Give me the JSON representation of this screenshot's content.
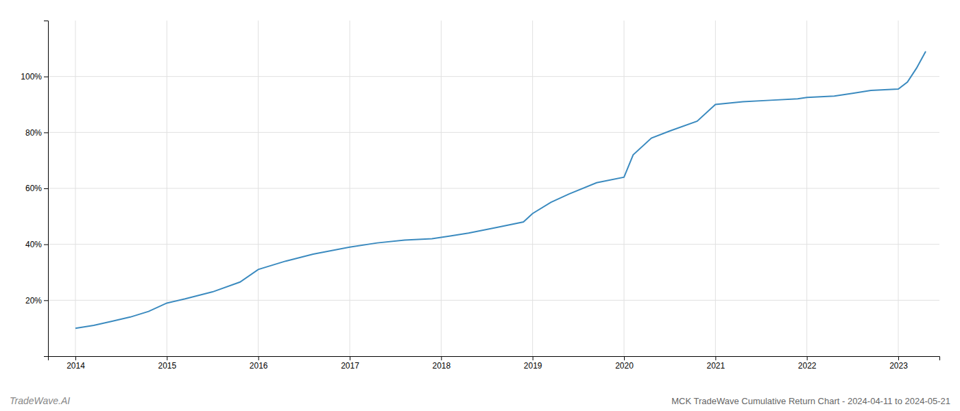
{
  "chart_data": {
    "type": "line",
    "title": "MCK TradeWave Cumulative Return Chart - 2024-04-11 to 2024-05-21",
    "annotations": [
      "TradeWave.AI"
    ],
    "x": [
      2014.0,
      2014.2,
      2014.4,
      2014.6,
      2014.8,
      2015.0,
      2015.2,
      2015.5,
      2015.8,
      2016.0,
      2016.3,
      2016.6,
      2017.0,
      2017.3,
      2017.6,
      2017.9,
      2018.0,
      2018.1,
      2018.3,
      2018.6,
      2018.9,
      2019.0,
      2019.2,
      2019.4,
      2019.7,
      2020.0,
      2020.1,
      2020.3,
      2020.5,
      2020.8,
      2021.0,
      2021.3,
      2021.6,
      2021.9,
      2022.0,
      2022.3,
      2022.5,
      2022.7,
      2023.0,
      2023.1,
      2023.2,
      2023.3
    ],
    "values": [
      10.0,
      11.0,
      12.5,
      14.0,
      16.0,
      19.0,
      20.5,
      23.0,
      26.5,
      31.0,
      34.0,
      36.5,
      39.0,
      40.5,
      41.5,
      42.0,
      42.5,
      43.0,
      44.0,
      46.0,
      48.0,
      51.0,
      55.0,
      58.0,
      62.0,
      64.0,
      72.0,
      78.0,
      80.5,
      84.0,
      90.0,
      91.0,
      91.5,
      92.0,
      92.5,
      93.0,
      94.0,
      95.0,
      95.5,
      98.0,
      103.0,
      109.0
    ],
    "color": "#3a8abf",
    "xlim": [
      2013.7,
      2023.45
    ],
    "xticks": [
      2014,
      2015,
      2016,
      2017,
      2018,
      2019,
      2020,
      2021,
      2022,
      2023
    ],
    "ylim": [
      0,
      120
    ],
    "yticks": [
      {
        "value": 20,
        "label": "20%"
      },
      {
        "value": 40,
        "label": "40%"
      },
      {
        "value": 60,
        "label": "60%"
      },
      {
        "value": 80,
        "label": "80%"
      },
      {
        "value": 100,
        "label": "100%"
      }
    ],
    "grid": true
  }
}
